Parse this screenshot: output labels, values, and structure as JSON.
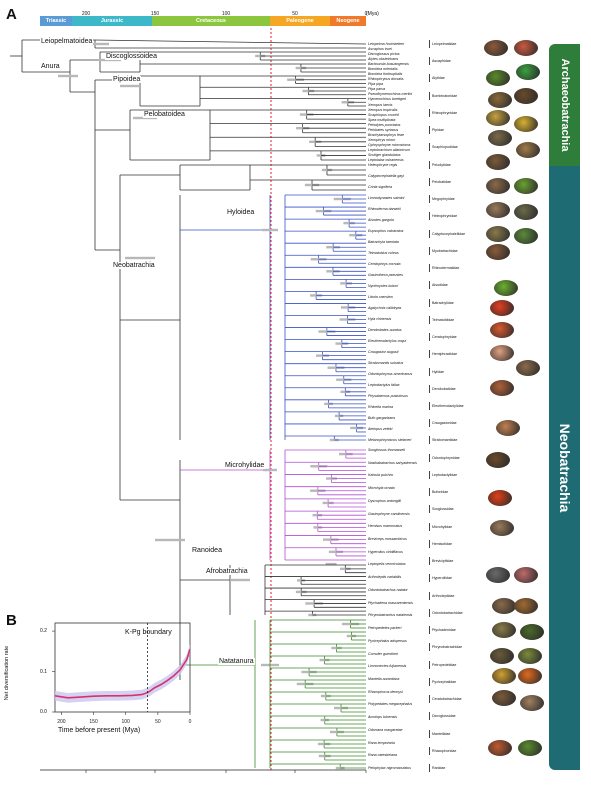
{
  "panels": {
    "a": "A",
    "b": "B"
  },
  "eras": [
    {
      "name": "Triassic",
      "color": "#5b9bd5"
    },
    {
      "name": "Jurassic",
      "color": "#3cb8c8"
    },
    {
      "name": "Cretaceous",
      "color": "#8cc63f"
    },
    {
      "name": "Paleogene",
      "color": "#f5a623"
    },
    {
      "name": "Neogene",
      "color": "#f07a2a"
    }
  ],
  "time_axis_a": {
    "ticks": [
      "200",
      "150",
      "100",
      "50",
      "0"
    ],
    "unit": "(Mya)"
  },
  "clades": {
    "leiopelmatoidea": "Leiopelmatoidea",
    "anura": "Anura",
    "discoglossoidea": "Discoglossoidea",
    "pipoidea": "Pipoidea",
    "pelobatoidea": "Pelobatoidea",
    "hyloidea": "Hyloidea",
    "neobatrachia": "Neobatrachia",
    "microhylidae": "Microhylidae",
    "ranoidea": "Ranoidea",
    "afrobatrachia": "Afrobatrachia",
    "natatanura": "Natatanura"
  },
  "bands": {
    "archaeobatrachia": "Archaeobatrachia",
    "neobatrachia": "Neobatrachia"
  },
  "families": [
    "Leiopelmatidae",
    "Ascaphidae",
    "Alytidae",
    "Bombinatoridae",
    "Rhinophrynidae",
    "Pipidae",
    "Scaphiopodidae",
    "Pelodytidae",
    "Pelobatidae",
    "Megophryidae",
    "Heleophrynidae",
    "Calyptocephalellidae",
    "Myobatrachidae",
    "Rhinodermatidae",
    "Alsodidae",
    "Batrachylidae",
    "Telmatobiidae",
    "Ceratophryidae",
    "Hemiphractidae",
    "Hylidae",
    "Dendrobatidae",
    "Eleutherodactylidae",
    "Craugastoridae",
    "Strabomantidae",
    "Odontophrynidae",
    "Leptodactylidae",
    "Bufonidae",
    "Sooglossidae",
    "Microhylidae",
    "Hemisotidae",
    "Brevicipitidae",
    "Hyperoliidae",
    "Arthroleptidae",
    "Odontobatrachidae",
    "Ptychadenidae",
    "Phrynobatrachidae",
    "Petropedetidae",
    "Pyxicephalidae",
    "Ceratobatrachidae",
    "Dicroglossidae",
    "Mantellidae",
    "Rhacophoridae",
    "Ranidae"
  ],
  "species_top": [
    "Leiopelma hochstetteri",
    "Ascaphus truei",
    "Discoglossus pictus",
    "Alytes obstetricans",
    "Barbourula busuangensis",
    "Bombina orientalis",
    "Bombina fortinuptialis",
    "Rhinophrynus dorsalis",
    "Pipa pipa",
    "Pipa parva",
    "Pseudhymenochirus merlini",
    "Hymenochirus boettgeri",
    "Xenopus laevis",
    "Xenopus tropicalis",
    "Scaphiopus couchii",
    "Spea multiplicata",
    "Pelodytes punctatus",
    "Pelobates syriacus",
    "Brachytarsophrys feae",
    "Xenophrys minor",
    "Ophryophryne microstoma",
    "Leptobrachium ailaonicum",
    "Scutiger glandulatus",
    "Leptolalax oshanensis"
  ],
  "species_mid": [
    "Heleophryne regis",
    "Calyptocephalella gayi",
    "Crinia signifera",
    "Limnodynastes salmini",
    "Rhinoderma darwinii",
    "Alsodes gargola",
    "Eupsophus calcaratus",
    "Batrachyla taeniata",
    "Telmatobius culeus",
    "Ceratophrys cornuta",
    "Gastrotheca pseustes",
    "Nyctimystes kubori",
    "Litoria caerulea",
    "Agalychnis callidryas",
    "Hyla chinensis",
    "Dendrobates auratus",
    "Eleutherodactylus coqui",
    "Craugastor augusti",
    "Strabomantis sulcatus",
    "Odontophrynus americanus",
    "Leptodactylus fallax",
    "Physalaemus pustulosus",
    "Rhinella marina",
    "Bufo gargarizans",
    "Atelopus zeteki",
    "Melanophryniscus stelzneri"
  ],
  "species_low": [
    "Sooglossus thomasseti",
    "Nasikabatrachus sahyadrensis",
    "Kaloula pulchra",
    "Microhyla ornata",
    "Dyscophus antongilii",
    "Gastrophryne carolinensis",
    "Hemisus marmoratus",
    "Breviceps mossambicus",
    "Hyperolius viridiflavus",
    "Leptopelis vermiculatus",
    "Arthroleptis variabilis",
    "Odontobatrachus natator",
    "Ptychadena mascareniensis",
    "Phrynobatrachus natalensis",
    "Petropedetes parkeri",
    "Pyxicephalus adspersus",
    "Cornufer guentheri",
    "Limnonectes fujianensis",
    "Mantella aurantiaca",
    "Rhacophorus dennysi",
    "Polypedates megacephalus",
    "Amolops loloensis",
    "Odorrana margaretae",
    "Rana temporaria",
    "Rana catesbeiana",
    "Pelophylax nigromaculatus"
  ],
  "panel_b": {
    "ylabel": "Net diversification rate",
    "xlabel": "Time before present (Mya)",
    "annotation": "K-Pg boundary",
    "yticks": [
      "0.2",
      "0.1",
      "0.0"
    ],
    "xticks": [
      "200",
      "150",
      "100",
      "50",
      "0"
    ],
    "line_color": "#d6336c",
    "band_color": "#c9c6f0",
    "chart_data": {
      "type": "line",
      "title": "",
      "xlabel": "Time before present (Mya)",
      "ylabel": "Net diversification rate",
      "xlim": [
        210,
        0
      ],
      "ylim": [
        0,
        0.22
      ],
      "x": [
        210,
        190,
        170,
        150,
        130,
        110,
        90,
        75,
        66,
        62,
        55,
        45,
        35,
        25,
        15,
        5,
        0
      ],
      "series": [
        {
          "values": [
            0.04,
            0.035,
            0.037,
            0.039,
            0.04,
            0.04,
            0.041,
            0.043,
            0.048,
            0.052,
            0.06,
            0.068,
            0.078,
            0.09,
            0.105,
            0.13,
            0.155
          ]
        }
      ],
      "kpg_x": 66
    }
  }
}
